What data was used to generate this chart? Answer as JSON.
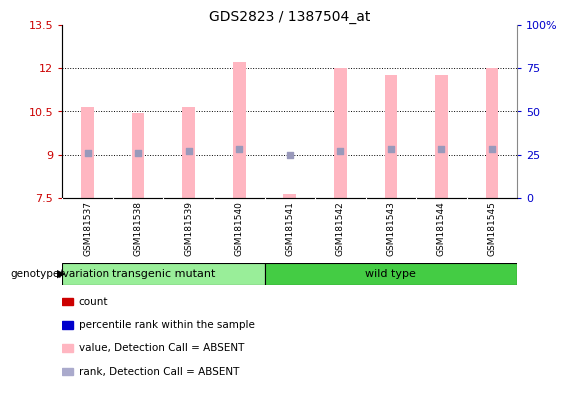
{
  "title": "GDS2823 / 1387504_at",
  "samples": [
    "GSM181537",
    "GSM181538",
    "GSM181539",
    "GSM181540",
    "GSM181541",
    "GSM181542",
    "GSM181543",
    "GSM181544",
    "GSM181545"
  ],
  "bar_tops": [
    10.65,
    10.45,
    10.65,
    12.2,
    7.62,
    12.0,
    11.75,
    11.75,
    12.0
  ],
  "bar_bottom": 7.5,
  "rank_percentile": [
    26,
    26,
    27,
    28,
    25,
    27,
    28,
    28,
    28
  ],
  "ylim_left": [
    7.5,
    13.5
  ],
  "ylim_right": [
    0,
    100
  ],
  "yticks_left": [
    7.5,
    9.0,
    10.5,
    12.0,
    13.5
  ],
  "ytick_labels_left": [
    "7.5",
    "9",
    "10.5",
    "12",
    "13.5"
  ],
  "yticks_right": [
    0,
    25,
    50,
    75,
    100
  ],
  "ytick_labels_right": [
    "0",
    "25",
    "50",
    "75",
    "100%"
  ],
  "bar_color": "#FFB6C1",
  "marker_color_absent": "#9999BB",
  "transgenic_color": "#99EE99",
  "wildtype_color": "#44CC44",
  "group1_label": "transgenic mutant",
  "group2_label": "wild type",
  "legend_colors": [
    "#CC0000",
    "#0000CC",
    "#FFB6C1",
    "#AAAACC"
  ],
  "legend_labels": [
    "count",
    "percentile rank within the sample",
    "value, Detection Call = ABSENT",
    "rank, Detection Call = ABSENT"
  ],
  "grid_yticks": [
    9.0,
    10.5,
    12.0
  ],
  "gray_color": "#CCCCCC",
  "background_color": "#FFFFFF"
}
